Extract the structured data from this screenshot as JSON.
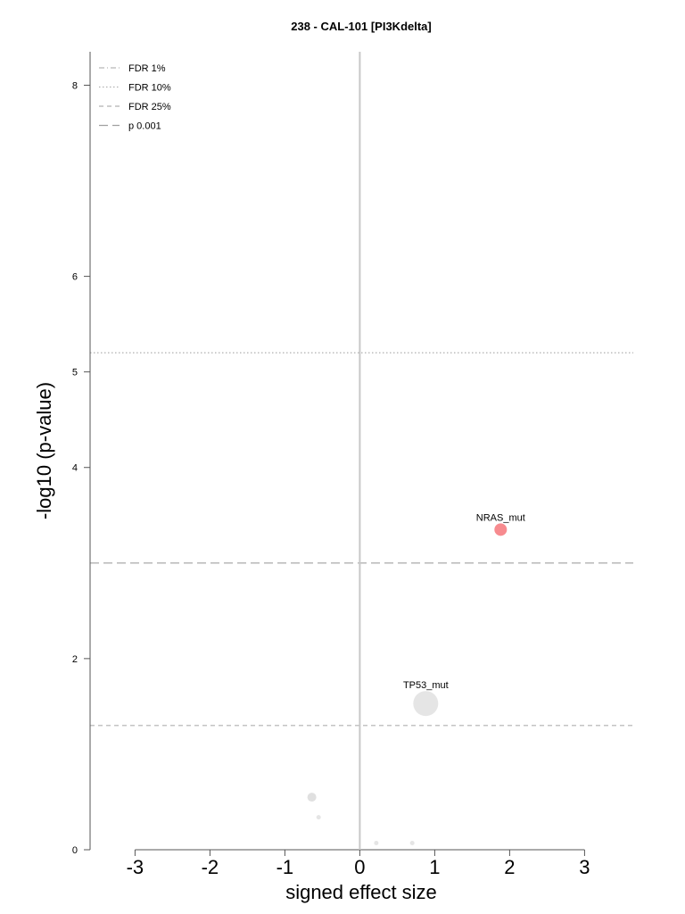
{
  "chart_data": {
    "type": "scatter",
    "title": "238 - CAL-101 [PI3Kdelta]",
    "xlabel": "signed effect size",
    "ylabel": "-log10 (p-value)",
    "xlim": [
      -3.6,
      3.65
    ],
    "ylim": [
      0,
      8.35
    ],
    "x_ticks": [
      -3,
      -2,
      -1,
      0,
      1,
      2,
      3
    ],
    "y_ticks": [
      0,
      2,
      4,
      5,
      6,
      8
    ],
    "grid": false,
    "zero_line_x": 0,
    "thresholds": [
      {
        "name": "FDR 1%",
        "style": "dashdot",
        "y": null
      },
      {
        "name": "FDR 10%",
        "style": "dotted",
        "y": 5.2
      },
      {
        "name": "FDR 25%",
        "style": "dashed",
        "y": 1.3
      },
      {
        "name": "p 0.001",
        "style": "longdash",
        "y": 3.0
      }
    ],
    "legend": {
      "placement": "top-left",
      "entries": [
        "FDR 1%",
        "FDR 10%",
        "FDR 25%",
        "p 0.001"
      ]
    },
    "points": [
      {
        "label": "NRAS_mut",
        "x": 1.88,
        "y": 3.35,
        "size": 7,
        "color": "#f78b8f"
      },
      {
        "label": "TP53_mut",
        "x": 0.88,
        "y": 1.53,
        "size": 14,
        "color": "#e5e5e5"
      },
      {
        "label": "",
        "x": -0.64,
        "y": 0.55,
        "size": 5,
        "color": "#e0e0e0"
      },
      {
        "label": "",
        "x": -0.55,
        "y": 0.34,
        "size": 2.5,
        "color": "#e5e5e5"
      },
      {
        "label": "",
        "x": 0.22,
        "y": 0.07,
        "size": 2.5,
        "color": "#e5e5e5"
      },
      {
        "label": "",
        "x": 0.7,
        "y": 0.07,
        "size": 2.5,
        "color": "#e5e5e5"
      }
    ]
  }
}
